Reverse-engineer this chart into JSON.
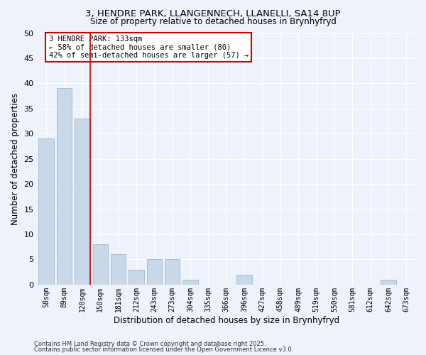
{
  "title_line1": "3, HENDRE PARK, LLANGENNECH, LLANELLI, SA14 8UP",
  "title_line2": "Size of property relative to detached houses in Brynhyfryd",
  "xlabel": "Distribution of detached houses by size in Brynhyfryd",
  "ylabel": "Number of detached properties",
  "bar_labels": [
    "58sqm",
    "89sqm",
    "120sqm",
    "150sqm",
    "181sqm",
    "212sqm",
    "243sqm",
    "273sqm",
    "304sqm",
    "335sqm",
    "366sqm",
    "396sqm",
    "427sqm",
    "458sqm",
    "489sqm",
    "519sqm",
    "550sqm",
    "581sqm",
    "612sqm",
    "642sqm",
    "673sqm"
  ],
  "bar_values": [
    29,
    39,
    33,
    8,
    6,
    3,
    5,
    5,
    1,
    0,
    0,
    2,
    0,
    0,
    0,
    0,
    0,
    0,
    0,
    1,
    0
  ],
  "bar_color": "#c8d8e8",
  "bar_edge_color": "#a0b8cc",
  "vline_color": "#cc0000",
  "ylim": [
    0,
    50
  ],
  "yticks": [
    0,
    5,
    10,
    15,
    20,
    25,
    30,
    35,
    40,
    45,
    50
  ],
  "annotation_text": "3 HENDRE PARK: 133sqm\n← 58% of detached houses are smaller (80)\n42% of semi-detached houses are larger (57) →",
  "annotation_box_color": "#ffffff",
  "annotation_box_edge_color": "#cc0000",
  "footer_line1": "Contains HM Land Registry data © Crown copyright and database right 2025.",
  "footer_line2": "Contains public sector information licensed under the Open Government Licence v3.0.",
  "background_color": "#eef2fb",
  "grid_color": "#ffffff"
}
